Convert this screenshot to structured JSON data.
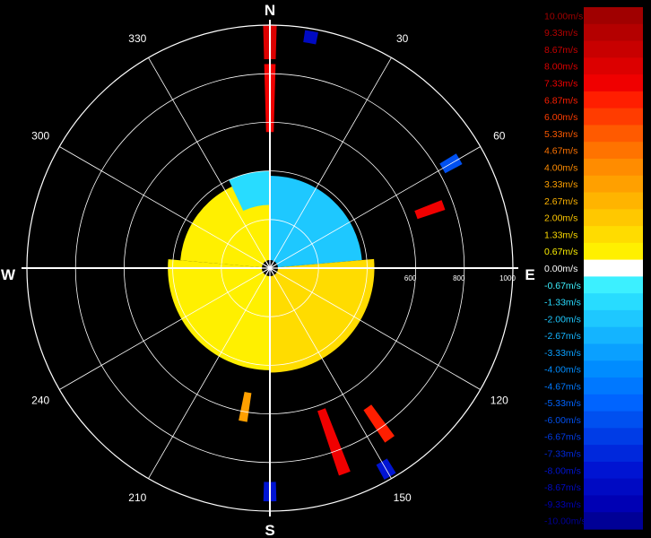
{
  "chart_data": {
    "type": "polar-heatmap",
    "title": "",
    "compass": {
      "north": "N",
      "east": "E",
      "south": "S",
      "west": "W"
    },
    "azimuth_labels": [
      {
        "az": 30,
        "label": "30"
      },
      {
        "az": 60,
        "label": "60"
      },
      {
        "az": 120,
        "label": "120"
      },
      {
        "az": 150,
        "label": "150"
      },
      {
        "az": 210,
        "label": "210"
      },
      {
        "az": 240,
        "label": "240"
      },
      {
        "az": 300,
        "label": "300"
      },
      {
        "az": 330,
        "label": "330"
      }
    ],
    "range_max": 1000,
    "range_rings": [
      200,
      400,
      600,
      800,
      1000
    ],
    "range_ring_labels": [
      {
        "range": 600,
        "label": "600"
      },
      {
        "range": 800,
        "label": "800"
      },
      {
        "range": 1000,
        "label": "1000"
      }
    ],
    "colorbar": {
      "unit": "m/s",
      "entries": [
        {
          "label": "10.00m/s",
          "value": 10.0,
          "color": "#a00000"
        },
        {
          "label": "9.33m/s",
          "value": 9.33,
          "color": "#b40000"
        },
        {
          "label": "8.67m/s",
          "value": 8.67,
          "color": "#c80000"
        },
        {
          "label": "8.00m/s",
          "value": 8.0,
          "color": "#dc0000"
        },
        {
          "label": "7.33m/s",
          "value": 7.33,
          "color": "#f00000"
        },
        {
          "label": "6.87m/s",
          "value": 6.87,
          "color": "#ff1e00"
        },
        {
          "label": "6.00m/s",
          "value": 6.0,
          "color": "#ff3c00"
        },
        {
          "label": "5.33m/s",
          "value": 5.33,
          "color": "#ff5a00"
        },
        {
          "label": "4.67m/s",
          "value": 4.67,
          "color": "#ff7300"
        },
        {
          "label": "4.00m/s",
          "value": 4.0,
          "color": "#ff8c00"
        },
        {
          "label": "3.33m/s",
          "value": 3.33,
          "color": "#ffa000"
        },
        {
          "label": "2.67m/s",
          "value": 2.67,
          "color": "#ffb400"
        },
        {
          "label": "2.00m/s",
          "value": 2.0,
          "color": "#ffc800"
        },
        {
          "label": "1.33m/s",
          "value": 1.33,
          "color": "#ffdc00"
        },
        {
          "label": "0.67m/s",
          "value": 0.67,
          "color": "#fff000"
        },
        {
          "label": "0.00m/s",
          "value": 0.0,
          "color": "#ffffff"
        },
        {
          "label": "-0.67m/s",
          "value": -0.67,
          "color": "#3cf0ff"
        },
        {
          "label": "-1.33m/s",
          "value": -1.33,
          "color": "#28dcff"
        },
        {
          "label": "-2.00m/s",
          "value": -2.0,
          "color": "#1ec8ff"
        },
        {
          "label": "-2.67m/s",
          "value": -2.67,
          "color": "#14b4ff"
        },
        {
          "label": "-3.33m/s",
          "value": -3.33,
          "color": "#0aa0ff"
        },
        {
          "label": "-4.00m/s",
          "value": -4.0,
          "color": "#008cff"
        },
        {
          "label": "-4.67m/s",
          "value": -4.67,
          "color": "#0078ff"
        },
        {
          "label": "-5.33m/s",
          "value": -5.33,
          "color": "#0064ff"
        },
        {
          "label": "-6.00m/s",
          "value": -6.0,
          "color": "#0050f0"
        },
        {
          "label": "-6.67m/s",
          "value": -6.67,
          "color": "#003ce6"
        },
        {
          "label": "-7.33m/s",
          "value": -7.33,
          "color": "#0028dc"
        },
        {
          "label": "-8.00m/s",
          "value": -8.0,
          "color": "#0014d2"
        },
        {
          "label": "-8.67m/s",
          "value": -8.67,
          "color": "#000ac3"
        },
        {
          "label": "-9.33m/s",
          "value": -9.33,
          "color": "#0000b4"
        },
        {
          "label": "-10.00m/s",
          "value": -10.0,
          "color": "#000096"
        }
      ]
    },
    "echo_regions": [
      {
        "az_start": 0,
        "az_end": 85,
        "range_start": 0,
        "range_end": 380,
        "value": -2.0
      },
      {
        "az_start": 85,
        "az_end": 180,
        "range_start": 0,
        "range_end": 430,
        "value": 1.6
      },
      {
        "az_start": 180,
        "az_end": 275,
        "range_start": 0,
        "range_end": 420,
        "value": 0.9
      },
      {
        "az_start": 275,
        "az_end": 360,
        "range_start": 0,
        "range_end": 370,
        "value": 0.7
      },
      {
        "az_start": 335,
        "az_end": 360,
        "range_start": 260,
        "range_end": 400,
        "value": -1.3
      }
    ],
    "hot_spots": [
      {
        "az": 0,
        "range_start": 860,
        "range_end": 1000,
        "value": 8.0
      },
      {
        "az": 0,
        "range_start": 560,
        "range_end": 840,
        "value": 7.33
      },
      {
        "az": 160,
        "range_start": 620,
        "range_end": 900,
        "value": 7.33
      },
      {
        "az": 145,
        "range_start": 700,
        "range_end": 860,
        "value": 6.87
      },
      {
        "az": 70,
        "range_start": 640,
        "range_end": 760,
        "value": 7.33
      },
      {
        "az": 190,
        "range_start": 520,
        "range_end": 640,
        "value": 3.33
      },
      {
        "az": 150,
        "range_start": 920,
        "range_end": 990,
        "value": -8.0
      },
      {
        "az": 180,
        "range_start": 880,
        "range_end": 960,
        "value": -8.0
      },
      {
        "az": 60,
        "range_start": 820,
        "range_end": 900,
        "value": -6.0
      },
      {
        "az": 10,
        "range_start": 940,
        "range_end": 990,
        "value": -8.67
      }
    ]
  }
}
